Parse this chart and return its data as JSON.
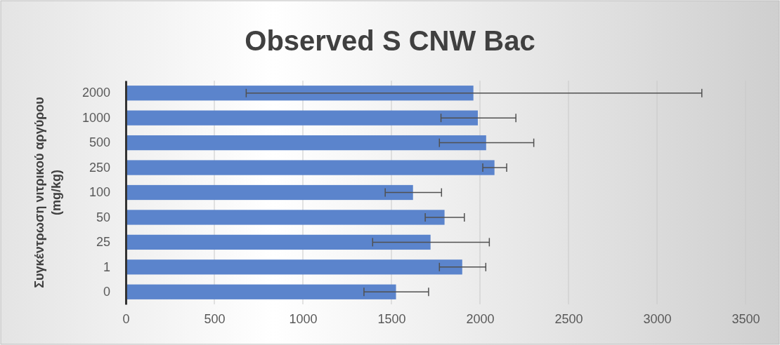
{
  "chart_data": {
    "type": "bar",
    "orientation": "horizontal",
    "title": "Observed S CNW Bac",
    "ylabel": "Συγκέντρωση νιτρικού αργύρου (mg/kg)",
    "categories": [
      "2000",
      "1000",
      "500",
      "250",
      "100",
      "50",
      "25",
      "1",
      "0"
    ],
    "values": [
      1963,
      1988,
      2035,
      2082,
      1622,
      1800,
      1721,
      1900,
      1526
    ],
    "errors": [
      [
        680,
        3253
      ],
      [
        1780,
        2203
      ],
      [
        1771,
        2304
      ],
      [
        2016,
        2151
      ],
      [
        1465,
        1783
      ],
      [
        1691,
        1912
      ],
      [
        1394,
        2053
      ],
      [
        1771,
        2033
      ],
      [
        1345,
        1710
      ]
    ],
    "color": "#5b84cc",
    "xlim": [
      0,
      3500
    ],
    "xticks": [
      0,
      500,
      1000,
      1500,
      2000,
      2500,
      3000,
      3500
    ],
    "grid": "x"
  }
}
